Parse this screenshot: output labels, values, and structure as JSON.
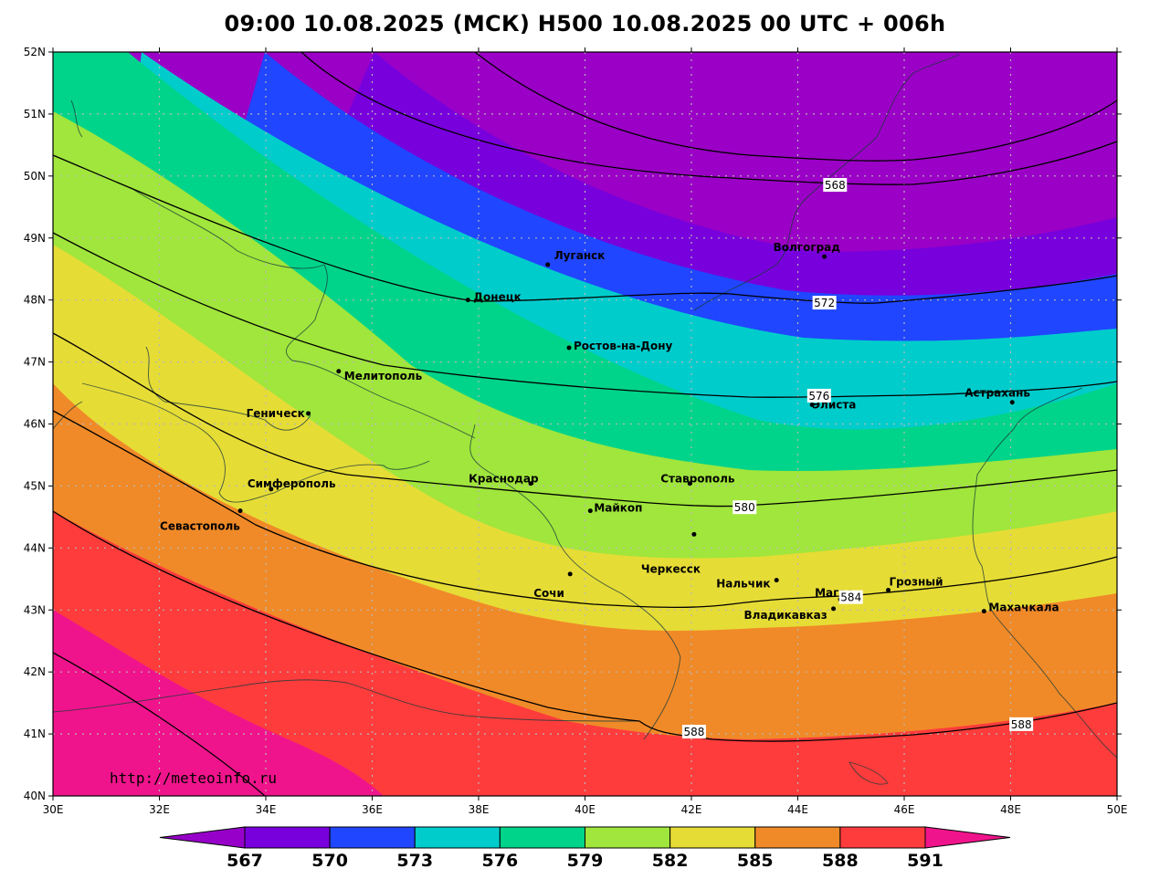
{
  "title": "09:00 10.08.2025 (МСК) H500  10.08.2025 00 UTC + 006h",
  "watermark": "http://meteoinfo.ru",
  "lat_labels": [
    "52N",
    "51N",
    "50N",
    "49N",
    "48N",
    "47N",
    "46N",
    "45N",
    "44N",
    "43N",
    "42N",
    "41N",
    "40N"
  ],
  "lon_labels": [
    "30E",
    "32E",
    "34E",
    "36E",
    "38E",
    "40E",
    "42E",
    "44E",
    "46E",
    "48E",
    "50E"
  ],
  "cities": [
    {
      "name": "Волгоград",
      "lon": 44.5,
      "lat": 48.7
    },
    {
      "name": "Луганск",
      "lon": 39.3,
      "lat": 48.57
    },
    {
      "name": "Донецк",
      "lon": 37.8,
      "lat": 48.0
    },
    {
      "name": "Ростов-на-Дону",
      "lon": 39.7,
      "lat": 47.23
    },
    {
      "name": "Мелитополь",
      "lon": 35.37,
      "lat": 46.85
    },
    {
      "name": "Геническ",
      "lon": 34.8,
      "lat": 46.17
    },
    {
      "name": "Элиста",
      "lon": 44.27,
      "lat": 46.31
    },
    {
      "name": "Астрахань",
      "lon": 48.03,
      "lat": 46.35
    },
    {
      "name": "Симферополь",
      "lon": 34.1,
      "lat": 44.95
    },
    {
      "name": "Краснодар",
      "lon": 38.98,
      "lat": 45.04
    },
    {
      "name": "Ставрополь",
      "lon": 41.97,
      "lat": 45.04
    },
    {
      "name": "Майкоп",
      "lon": 40.1,
      "lat": 44.6
    },
    {
      "name": "Севастополь",
      "lon": 33.52,
      "lat": 44.6
    },
    {
      "name": "Черкесск",
      "lon": 42.05,
      "lat": 44.22
    },
    {
      "name": "Сочи",
      "lon": 39.72,
      "lat": 43.58
    },
    {
      "name": "Нальчик",
      "lon": 43.6,
      "lat": 43.48
    },
    {
      "name": "Магас",
      "lon": 44.8,
      "lat": 43.17
    },
    {
      "name": "Грозный",
      "lon": 45.7,
      "lat": 43.32
    },
    {
      "name": "Владикавказ",
      "lon": 44.67,
      "lat": 43.02
    },
    {
      "name": "Махачкала",
      "lon": 47.5,
      "lat": 42.98
    }
  ],
  "contour_labels": [
    {
      "value": "568",
      "lon": 44.7,
      "lat": 49.85
    },
    {
      "value": "572",
      "lon": 44.5,
      "lat": 47.95
    },
    {
      "value": "576",
      "lon": 44.4,
      "lat": 46.45
    },
    {
      "value": "580",
      "lon": 43.0,
      "lat": 44.65
    },
    {
      "value": "584",
      "lon": 45.0,
      "lat": 43.2
    },
    {
      "value": "588",
      "lon": 42.05,
      "lat": 41.03
    },
    {
      "value": "588",
      "lon": 48.2,
      "lat": 41.15
    }
  ],
  "colorbar": {
    "labels": [
      "567",
      "570",
      "573",
      "576",
      "579",
      "582",
      "585",
      "588",
      "591"
    ],
    "colors": [
      "#9600c8",
      "#7800dc",
      "#2046ff",
      "#00cccc",
      "#00d48a",
      "#a0e63c",
      "#e6dc36",
      "#f08a28",
      "#ff3c3c",
      "#f0148c"
    ]
  },
  "band_colors": {
    "b_le567": "#9b00c6",
    "b567": "#7800dc",
    "b570": "#2046ff",
    "b573": "#00cccc",
    "b576": "#00d48a",
    "b579": "#a0e63c",
    "b582": "#e6dc36",
    "b585": "#f08a28",
    "b588": "#ff3c3c",
    "b591": "#f0148c"
  }
}
